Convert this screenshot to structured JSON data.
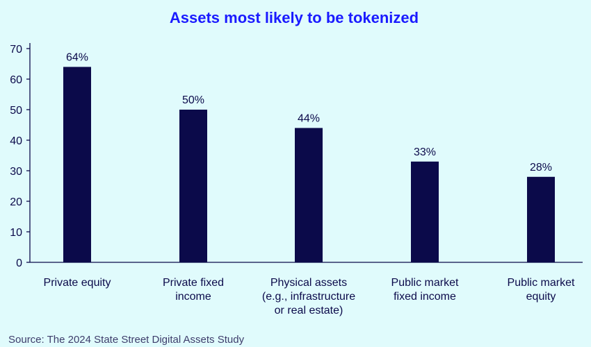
{
  "colors": {
    "background": "#e0fbfc",
    "title": "#1a1aff",
    "bar": "#0b0a4a",
    "axis": "#0b0a4a",
    "text": "#0b0a4a"
  },
  "chart_data": {
    "type": "bar",
    "title": "Assets most likely to be tokenized",
    "xlabel": "",
    "ylabel": "",
    "ylim": [
      0,
      70
    ],
    "yticks": [
      0,
      10,
      20,
      30,
      40,
      50,
      60,
      70
    ],
    "grid": false,
    "categories": [
      [
        "Private equity"
      ],
      [
        "Private fixed",
        "income"
      ],
      [
        "Physical assets",
        "(e.g., infrastructure",
        "or real estate)"
      ],
      [
        "Public market",
        "fixed income"
      ],
      [
        "Public market",
        "equity"
      ]
    ],
    "values": [
      64,
      50,
      44,
      33,
      28
    ],
    "data_labels": [
      "64%",
      "50%",
      "44%",
      "33%",
      "28%"
    ],
    "source": "Source: The 2024 State Street Digital Assets Study"
  }
}
